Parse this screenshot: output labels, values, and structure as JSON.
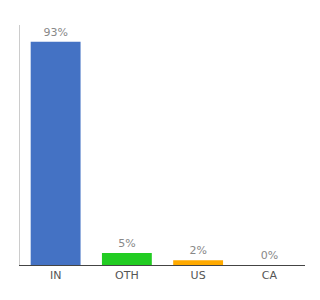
{
  "chart_data": {
    "type": "bar",
    "categories": [
      "IN",
      "OTH",
      "US",
      "CA"
    ],
    "values": [
      93,
      5,
      2,
      0
    ],
    "value_labels": [
      "93%",
      "5%",
      "2%",
      "0%"
    ],
    "colors": [
      "#4472c4",
      "#22cc22",
      "#ffaa00",
      "#aaaaaa"
    ],
    "ylim": [
      0,
      100
    ],
    "data_labels": true,
    "tick_labels": "x",
    "grid": false
  }
}
